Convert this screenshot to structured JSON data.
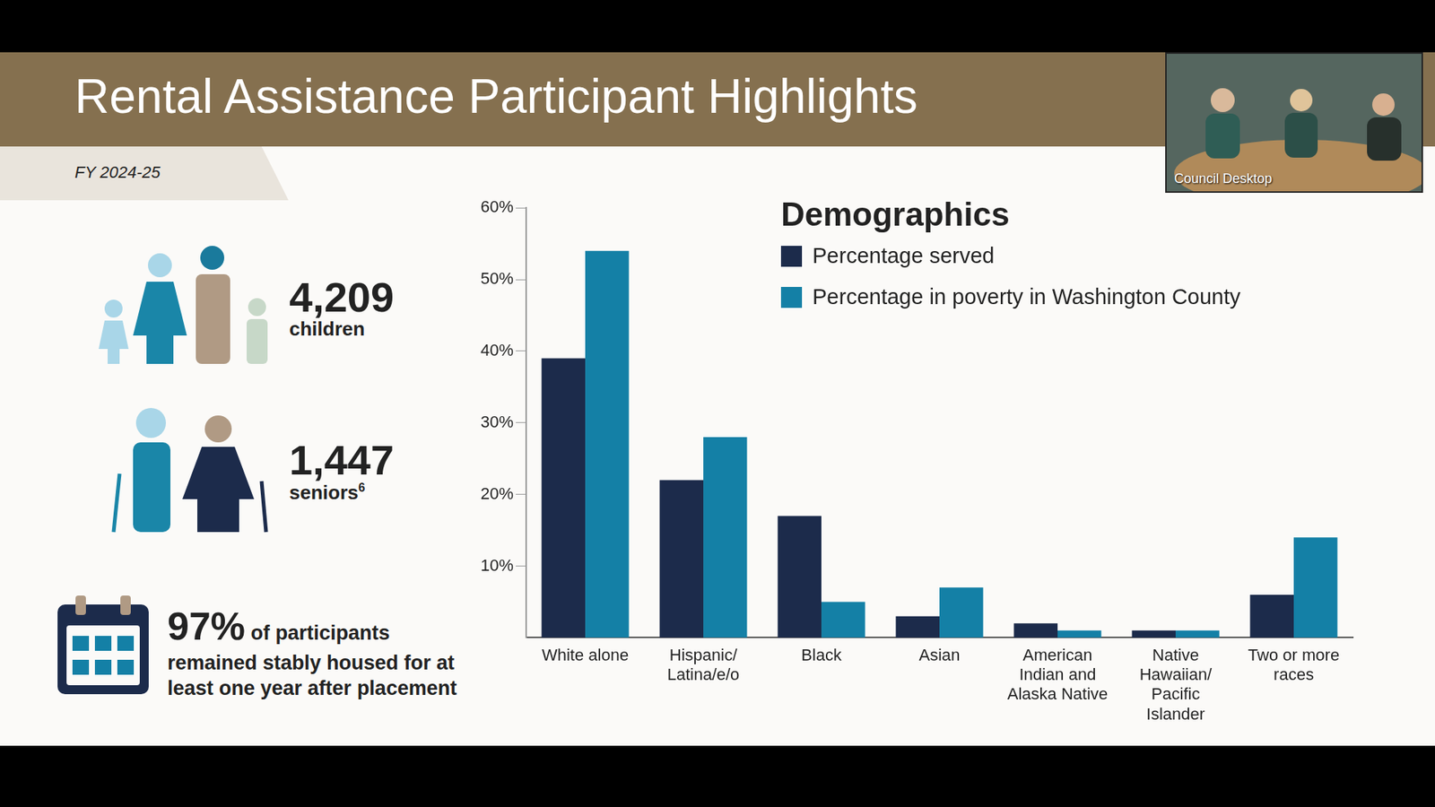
{
  "header": {
    "title": "Rental Assistance Participant Highlights",
    "period": "FY 2024-25"
  },
  "video_inset": {
    "label": "Council Desktop"
  },
  "stats": [
    {
      "value": "4,209",
      "label": "children"
    },
    {
      "value": "1,447",
      "label": "seniors",
      "footnote": "6"
    },
    {
      "value": "97%",
      "label": "of participants remained stably housed for at least one year after placement"
    }
  ],
  "chart_data": {
    "type": "bar",
    "title": "Demographics",
    "categories": [
      "White alone",
      "Hispanic/Latina/e/o",
      "Black",
      "Asian",
      "American Indian and Alaska Native",
      "Native Hawaiian/Pacific Islander",
      "Two or more races"
    ],
    "series": [
      {
        "name": "Percentage served",
        "color": "#1c2b4b",
        "values": [
          39,
          22,
          17,
          3,
          2,
          1,
          6
        ]
      },
      {
        "name": "Percentage in poverty in Washington County",
        "color": "#1480a6",
        "values": [
          54,
          28,
          5,
          7,
          1,
          1,
          14
        ]
      }
    ],
    "ylim": [
      0,
      60
    ],
    "yticks": [
      {
        "value": 10,
        "label": "10%"
      },
      {
        "value": 20,
        "label": "20%"
      },
      {
        "value": 30,
        "label": "30%"
      },
      {
        "value": 40,
        "label": "40%"
      },
      {
        "value": 50,
        "label": "50%"
      },
      {
        "value": 60,
        "label": "60%"
      }
    ],
    "grid": false,
    "legend": "top right"
  }
}
